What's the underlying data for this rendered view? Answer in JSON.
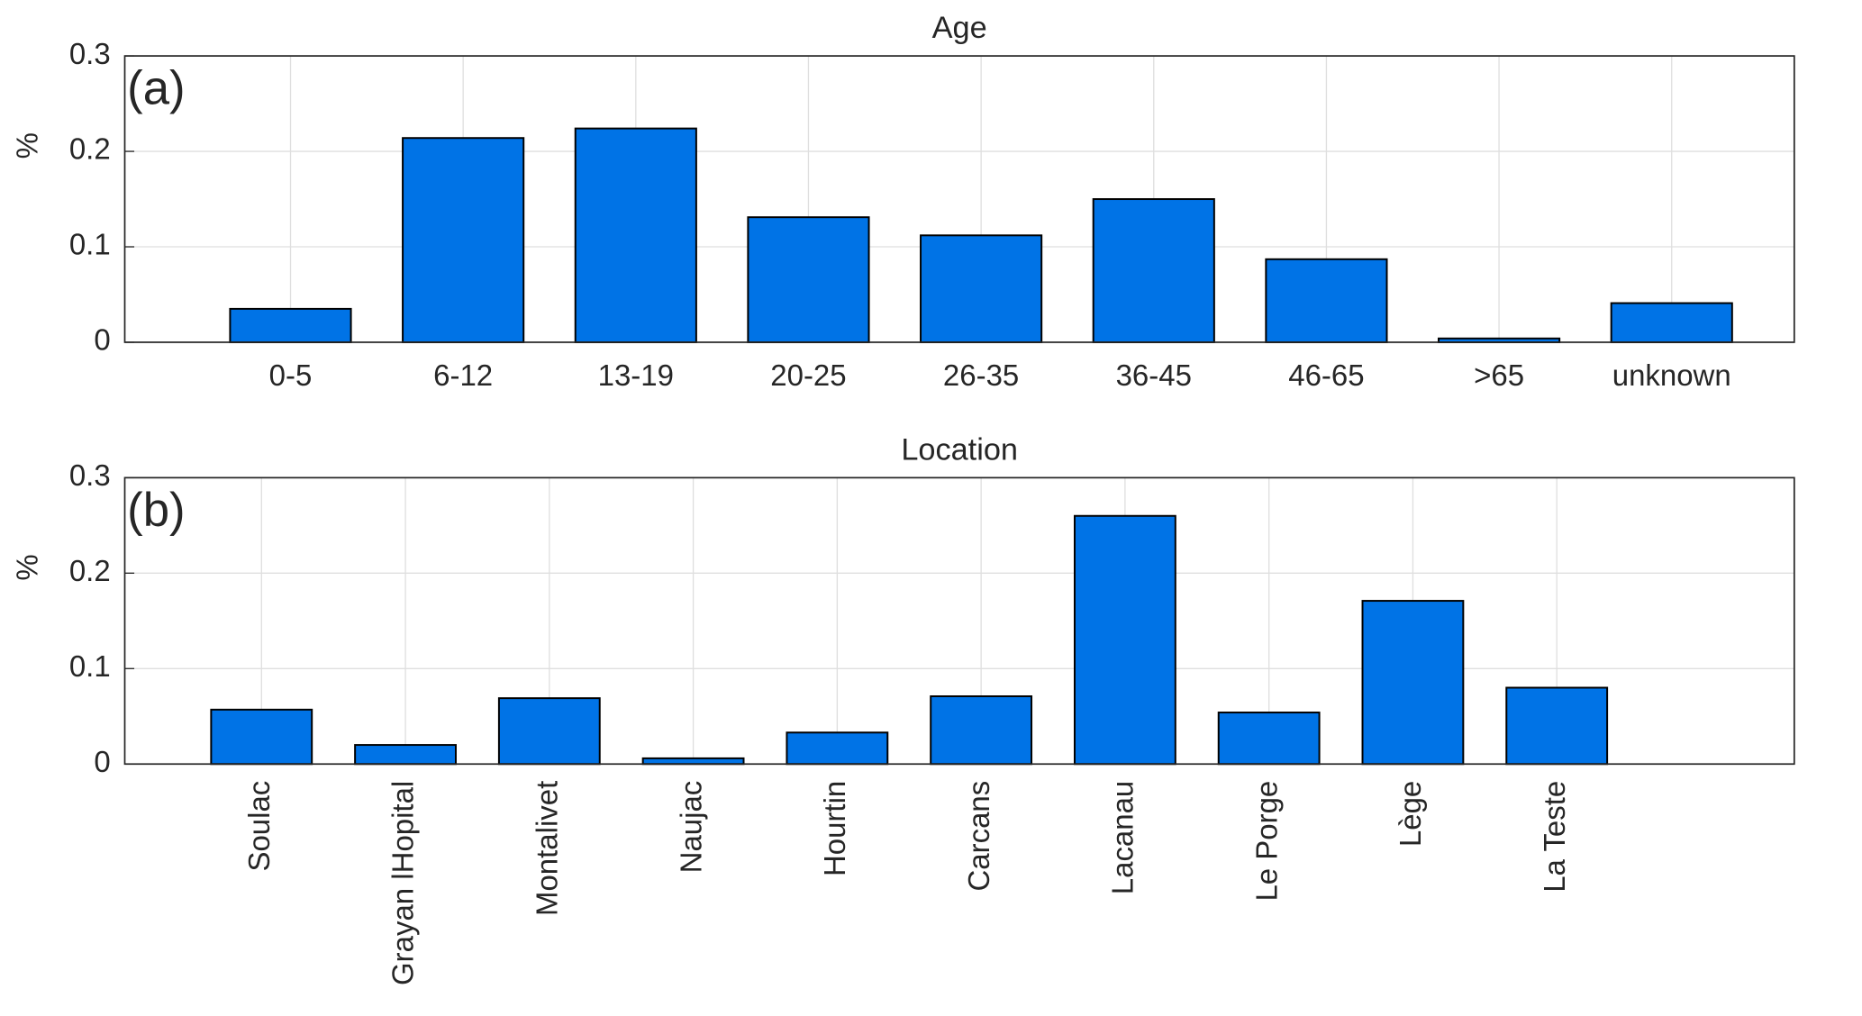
{
  "chart_data": [
    {
      "type": "bar",
      "title": "Age",
      "panel_label": "(a)",
      "ylabel": "%",
      "categories": [
        "0-5",
        "6-12",
        "13-19",
        "20-25",
        "26-35",
        "36-45",
        "46-65",
        ">65",
        "unknown"
      ],
      "values": [
        0.035,
        0.214,
        0.224,
        0.131,
        0.112,
        0.15,
        0.087,
        0.004,
        0.041
      ],
      "color": "#0073e6",
      "ylim": [
        0,
        0.3
      ],
      "yticks": [
        0,
        0.1,
        0.2,
        0.3
      ],
      "grid": true
    },
    {
      "type": "bar",
      "title": "Location",
      "panel_label": "(b)",
      "ylabel": "%",
      "categories": [
        "Soulac",
        "Grayan lHopital",
        "Montalivet",
        "Naujac",
        "Hourtin",
        "Carcans",
        "Lacanau",
        "Le Porge",
        "Lège",
        "La Teste"
      ],
      "values": [
        0.057,
        0.02,
        0.069,
        0.006,
        0.033,
        0.071,
        0.26,
        0.054,
        0.171,
        0.08
      ],
      "color": "#0073e6",
      "ylim": [
        0,
        0.3
      ],
      "yticks": [
        0,
        0.1,
        0.2,
        0.3
      ],
      "grid": true
    }
  ]
}
